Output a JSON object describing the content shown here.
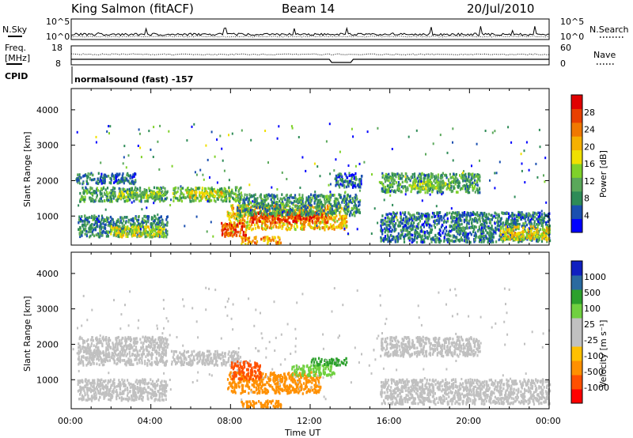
{
  "header": {
    "station": "King Salmon (fitACF)",
    "beam": "Beam 14",
    "date": "20/Jul/2010"
  },
  "top_panels": {
    "noise_left_label": "N.Sky",
    "noise_right_label": "N.Search",
    "noise_left_ticks": [
      "10^5",
      "10^0"
    ],
    "noise_right_ticks": [
      "10^5",
      "10^0"
    ],
    "freq_label_line1": "Freq.",
    "freq_label_line2": "[MHz]",
    "freq_ticks": [
      "18",
      "8"
    ],
    "nave_label": "Nave",
    "nave_ticks": [
      "60",
      "0"
    ],
    "cpid_label": "CPID",
    "cpid_text": "normalsound (fast) -157"
  },
  "colors": {
    "power_scale": [
      "#0000ff",
      "#1a4fb0",
      "#2e8b57",
      "#5aa85a",
      "#7fd12a",
      "#f0e000",
      "#f5b000",
      "#f07800",
      "#e84000",
      "#e00000"
    ],
    "velocity_scale": [
      "#ff0000",
      "#ff5000",
      "#ff9000",
      "#ffc000",
      "#c0c0c0",
      "#c0c0c0",
      "#70d040",
      "#2ca02c",
      "#2a6aa0",
      "#1020c0"
    ]
  },
  "chart_data": [
    {
      "type": "heatmap",
      "panel": "power",
      "ylabel": "Slant Range [km]",
      "colorbar_label": "Power [dB]",
      "yticks": [
        "1000",
        "2000",
        "3000",
        "4000"
      ],
      "ylim": [
        180,
        4600
      ],
      "colorbar_ticks": [
        "4",
        "8",
        "12",
        "16",
        "20",
        "24",
        "28"
      ],
      "colorbar_range": [
        0,
        32
      ],
      "regions": [
        {
          "t0": 0.2,
          "t1": 3.2,
          "r0": 1900,
          "r1": 2200,
          "v": 7
        },
        {
          "t0": 0.4,
          "t1": 4.8,
          "r0": 1400,
          "r1": 1800,
          "v": 10
        },
        {
          "t0": 2.3,
          "t1": 4.8,
          "r0": 1500,
          "r1": 1700,
          "v": 14
        },
        {
          "t0": 0.3,
          "t1": 4.8,
          "r0": 400,
          "r1": 1000,
          "v": 8
        },
        {
          "t0": 1.8,
          "t1": 4.7,
          "r0": 400,
          "r1": 700,
          "v": 16
        },
        {
          "t0": 5.0,
          "t1": 8.5,
          "r0": 1400,
          "r1": 1800,
          "v": 12
        },
        {
          "t0": 5.6,
          "t1": 7.7,
          "r0": 1500,
          "r1": 1700,
          "v": 18
        },
        {
          "t0": 7.8,
          "t1": 13.8,
          "r0": 600,
          "r1": 1300,
          "v": 20
        },
        {
          "t0": 9.0,
          "t1": 12.8,
          "r0": 800,
          "r1": 1100,
          "v": 28
        },
        {
          "t0": 7.5,
          "t1": 8.8,
          "r0": 400,
          "r1": 800,
          "v": 26
        },
        {
          "t0": 8.3,
          "t1": 14.5,
          "r0": 1000,
          "r1": 1600,
          "v": 9
        },
        {
          "t0": 13.2,
          "t1": 14.6,
          "r0": 1800,
          "r1": 2200,
          "v": 6
        },
        {
          "t0": 15.5,
          "t1": 20.5,
          "r0": 1650,
          "r1": 2200,
          "v": 10
        },
        {
          "t0": 17.0,
          "t1": 19.0,
          "r0": 1750,
          "r1": 2000,
          "v": 14
        },
        {
          "t0": 15.5,
          "t1": 24.0,
          "r0": 250,
          "r1": 1100,
          "v": 7
        },
        {
          "t0": 21.5,
          "t1": 24.0,
          "r0": 300,
          "r1": 700,
          "v": 18
        },
        {
          "t0": 8.5,
          "t1": 10.5,
          "r0": 200,
          "r1": 400,
          "v": 22
        }
      ]
    },
    {
      "type": "heatmap",
      "panel": "velocity",
      "ylabel": "Slant Range [km]",
      "colorbar_label": "Velocity [m s⁻¹]",
      "xlabel": "Time UT",
      "yticks": [
        "1000",
        "2000",
        "3000",
        "4000"
      ],
      "ylim": [
        180,
        4600
      ],
      "xticks": [
        "00:00",
        "04:00",
        "08:00",
        "12:00",
        "16:00",
        "20:00",
        "00:00"
      ],
      "xlim": [
        0,
        24
      ],
      "colorbar_ticks": [
        "-1000",
        "-500",
        "-100",
        "-25",
        "25",
        "100",
        "500",
        "1000"
      ],
      "regions": [
        {
          "t0": 0.3,
          "t1": 4.8,
          "r0": 1400,
          "r1": 2200,
          "v": 0
        },
        {
          "t0": 0.3,
          "t1": 4.8,
          "r0": 400,
          "r1": 1000,
          "v": 0
        },
        {
          "t0": 5.0,
          "t1": 8.5,
          "r0": 1400,
          "r1": 1800,
          "v": 0
        },
        {
          "t0": 7.8,
          "t1": 12.5,
          "r0": 600,
          "r1": 1200,
          "v": -150
        },
        {
          "t0": 8.0,
          "t1": 9.5,
          "r0": 1000,
          "r1": 1500,
          "v": -600
        },
        {
          "t0": 11.0,
          "t1": 13.2,
          "r0": 1100,
          "r1": 1400,
          "v": 150
        },
        {
          "t0": 12.0,
          "t1": 13.8,
          "r0": 1400,
          "r1": 1600,
          "v": 700
        },
        {
          "t0": 15.5,
          "t1": 20.5,
          "r0": 1650,
          "r1": 2200,
          "v": 0
        },
        {
          "t0": 15.5,
          "t1": 24.0,
          "r0": 300,
          "r1": 1000,
          "v": 0
        },
        {
          "t0": 8.5,
          "t1": 10.5,
          "r0": 200,
          "r1": 400,
          "v": -200
        }
      ]
    }
  ],
  "time_axis": {
    "label": "Time UT",
    "ticks": [
      "00:00",
      "04:00",
      "08:00",
      "12:00",
      "16:00",
      "20:00",
      "00:00"
    ]
  }
}
